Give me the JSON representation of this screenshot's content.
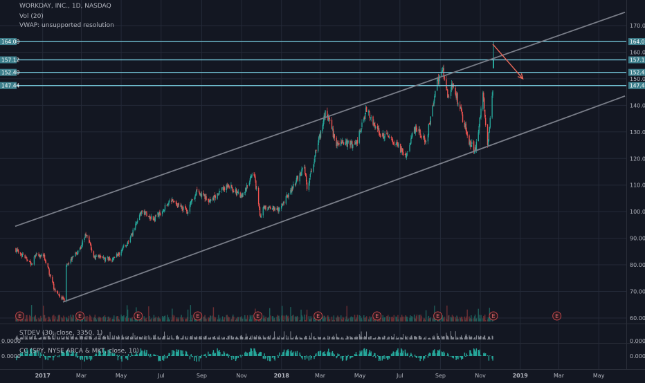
{
  "legend": {
    "symbol_line": "WORKDAY, INC., 1D, NASDAQ",
    "vol_line": "Vol (20)",
    "vwap_line": "VWAP: unsupported resolution"
  },
  "price_axis": {
    "ticks": [
      "170.00",
      "160.00",
      "150.00",
      "140.00",
      "130.00",
      "120.00",
      "110.00",
      "100.00",
      "90.00",
      "80.00",
      "70.00",
      "60.00"
    ],
    "tick_values": [
      170,
      160,
      150,
      140,
      130,
      120,
      110,
      100,
      90,
      80,
      70,
      60
    ]
  },
  "levels": [
    {
      "value": 164.0,
      "label": "164.00"
    },
    {
      "value": 157.12,
      "label": "157.12"
    },
    {
      "value": 152.4,
      "label": "152.40"
    },
    {
      "value": 147.44,
      "label": "147.44"
    }
  ],
  "time_axis": {
    "labels": [
      "2017",
      "Mar",
      "May",
      "Jul",
      "Sep",
      "Nov",
      "2018",
      "Mar",
      "May",
      "Jul",
      "Sep",
      "Nov",
      "2019",
      "Mar",
      "May"
    ]
  },
  "earnings_marker": "E",
  "stdev_panel": {
    "label": "STDEV (30, close, 3350, 1)",
    "axis_label": "0.0000"
  },
  "cc_panel": {
    "label": "CC (SPY, NYSE ARCA & MKT, close, 10)",
    "axis_label": "0.0000"
  },
  "colors": {
    "background": "#131722",
    "grid": "#242a38",
    "up": "#26a69a",
    "down": "#ef5350",
    "level": "#74c6d8",
    "channel": "#7a7e89",
    "arrow": "#ef6a5a",
    "text": "#b2b5be"
  },
  "chart_data": {
    "type": "candlestick",
    "title": "WORKDAY, INC., 1D, NASDAQ",
    "ylim": [
      57,
      176
    ],
    "channel_lines": [
      {
        "from": {
          "date": "2016-11-20",
          "price": 94.5
        },
        "to": {
          "date": "2019-06-10",
          "price": 175
        }
      },
      {
        "from": {
          "date": "2017-02-01",
          "price": 66
        },
        "to": {
          "date": "2019-06-10",
          "price": 143.5
        }
      }
    ],
    "forecast_arrow": {
      "from": {
        "date": "2018-11-20",
        "price": 163
      },
      "to": {
        "date": "2019-01-05",
        "price": 150
      }
    },
    "anchor_points": [
      {
        "date": "2016-11-20",
        "close": 86
      },
      {
        "date": "2016-12-15",
        "close": 80
      },
      {
        "date": "2016-12-20",
        "close": 84
      },
      {
        "date": "2017-01-03",
        "close": 83
      },
      {
        "date": "2017-01-20",
        "close": 70
      },
      {
        "date": "2017-02-03",
        "close": 66.5
      },
      {
        "date": "2017-02-06",
        "close": 80
      },
      {
        "date": "2017-02-25",
        "close": 85
      },
      {
        "date": "2017-03-08",
        "close": 92
      },
      {
        "date": "2017-03-20",
        "close": 83
      },
      {
        "date": "2017-04-20",
        "close": 82
      },
      {
        "date": "2017-05-15",
        "close": 90
      },
      {
        "date": "2017-06-01",
        "close": 100
      },
      {
        "date": "2017-06-20",
        "close": 97
      },
      {
        "date": "2017-07-15",
        "close": 104
      },
      {
        "date": "2017-08-10",
        "close": 100
      },
      {
        "date": "2017-08-25",
        "close": 108
      },
      {
        "date": "2017-09-15",
        "close": 104
      },
      {
        "date": "2017-10-10",
        "close": 110
      },
      {
        "date": "2017-11-01",
        "close": 106
      },
      {
        "date": "2017-11-20",
        "close": 115
      },
      {
        "date": "2017-11-30",
        "close": 97
      },
      {
        "date": "2017-12-05",
        "close": 102
      },
      {
        "date": "2017-12-28",
        "close": 101
      },
      {
        "date": "2018-01-15",
        "close": 108
      },
      {
        "date": "2018-02-05",
        "close": 117
      },
      {
        "date": "2018-02-09",
        "close": 109
      },
      {
        "date": "2018-02-25",
        "close": 125
      },
      {
        "date": "2018-03-10",
        "close": 138
      },
      {
        "date": "2018-03-25",
        "close": 126
      },
      {
        "date": "2018-04-25",
        "close": 125
      },
      {
        "date": "2018-05-10",
        "close": 138
      },
      {
        "date": "2018-06-01",
        "close": 129
      },
      {
        "date": "2018-06-20",
        "close": 127
      },
      {
        "date": "2018-07-10",
        "close": 121
      },
      {
        "date": "2018-07-25",
        "close": 132
      },
      {
        "date": "2018-08-10",
        "close": 126
      },
      {
        "date": "2018-08-25",
        "close": 147
      },
      {
        "date": "2018-09-05",
        "close": 154
      },
      {
        "date": "2018-09-12",
        "close": 143
      },
      {
        "date": "2018-09-20",
        "close": 148
      },
      {
        "date": "2018-10-05",
        "close": 135
      },
      {
        "date": "2018-10-15",
        "close": 126
      },
      {
        "date": "2018-10-25",
        "close": 123
      },
      {
        "date": "2018-11-05",
        "close": 145
      },
      {
        "date": "2018-11-12",
        "close": 124
      },
      {
        "date": "2018-11-20",
        "close": 146
      }
    ],
    "spike_candle": {
      "date": "2018-11-21",
      "open": 156,
      "high": 164,
      "low": 155,
      "close": 157.12
    }
  }
}
